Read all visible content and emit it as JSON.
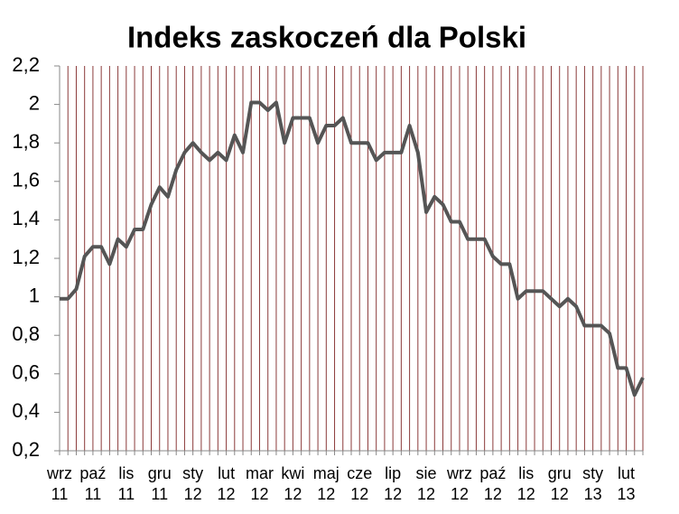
{
  "chart_data": {
    "type": "line",
    "title": "Indeks zaskoczeń dla Polski",
    "categories": [
      "wrz 11",
      null,
      null,
      null,
      "paź 11",
      null,
      null,
      null,
      "lis 11",
      null,
      null,
      null,
      "gru 11",
      null,
      null,
      null,
      "sty 12",
      null,
      null,
      null,
      "lut 12",
      null,
      null,
      null,
      "mar 12",
      null,
      null,
      null,
      "kwi 12",
      null,
      null,
      null,
      "maj 12",
      null,
      null,
      null,
      "cze 12",
      null,
      null,
      null,
      "lip 12",
      null,
      null,
      null,
      "sie 12",
      null,
      null,
      null,
      "wrz 12",
      null,
      null,
      null,
      "paź 12",
      null,
      null,
      null,
      "lis 12",
      null,
      null,
      null,
      "gru 12",
      null,
      null,
      null,
      "sty 13",
      null,
      null,
      null,
      "lut 13",
      null,
      null
    ],
    "series": [
      {
        "name": "Indeks zaskoczeń",
        "color": "#555555",
        "values": [
          0.99,
          0.99,
          1.04,
          1.21,
          1.26,
          1.26,
          1.17,
          1.3,
          1.26,
          1.35,
          1.35,
          1.48,
          1.57,
          1.52,
          1.66,
          1.75,
          1.8,
          1.75,
          1.71,
          1.75,
          1.71,
          1.84,
          1.75,
          2.01,
          2.01,
          1.97,
          2.01,
          1.8,
          1.93,
          1.93,
          1.93,
          1.8,
          1.89,
          1.89,
          1.93,
          1.8,
          1.8,
          1.8,
          1.71,
          1.75,
          1.75,
          1.75,
          1.89,
          1.75,
          1.44,
          1.52,
          1.48,
          1.39,
          1.39,
          1.3,
          1.3,
          1.3,
          1.21,
          1.17,
          1.17,
          0.99,
          1.03,
          1.03,
          1.03,
          0.99,
          0.95,
          0.99,
          0.95,
          0.85,
          0.85,
          0.85,
          0.81,
          0.63,
          0.63,
          0.49,
          0.58
        ]
      }
    ],
    "ylim": [
      0.2,
      2.2
    ],
    "yticks": [
      {
        "value": 0.2,
        "label": "0,2"
      },
      {
        "value": 0.4,
        "label": "0,4"
      },
      {
        "value": 0.6,
        "label": "0,6"
      },
      {
        "value": 0.8,
        "label": "0,8"
      },
      1,
      {
        "value": 1.2,
        "label": "1,2"
      },
      {
        "value": 1.4,
        "label": "1,4"
      },
      {
        "value": 1.6,
        "label": "1,6"
      },
      {
        "value": 1.8,
        "label": "1,8"
      },
      2,
      {
        "value": 2.2,
        "label": "2,2"
      }
    ],
    "grid": true,
    "grid_color": "#8b3a3a"
  }
}
